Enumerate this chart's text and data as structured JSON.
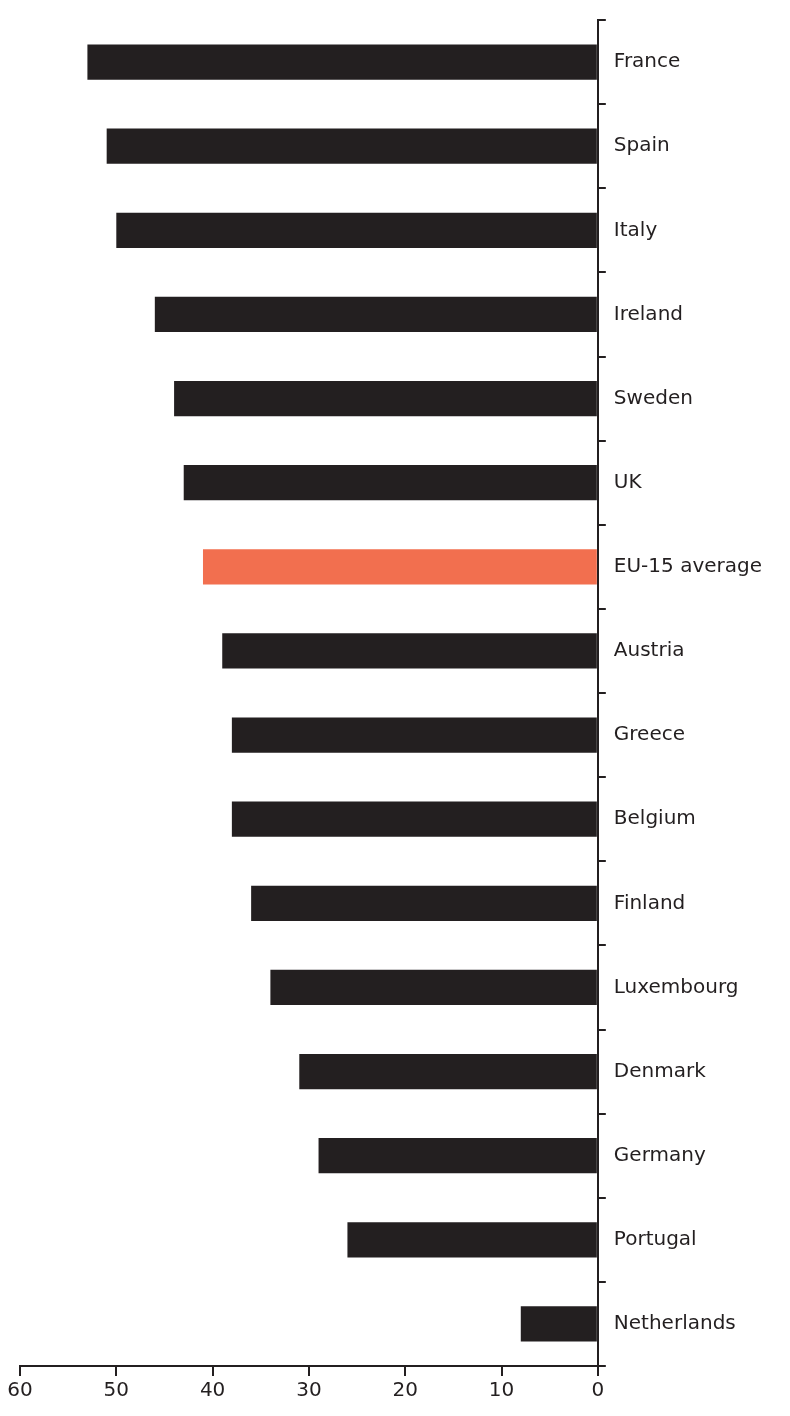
{
  "chart_data": {
    "type": "bar",
    "orientation": "horizontal",
    "categories": [
      "France",
      "Spain",
      "Italy",
      "Ireland",
      "Sweden",
      "UK",
      "EU-15 average",
      "Austria",
      "Greece",
      "Belgium",
      "Finland",
      "Luxembourg",
      "Denmark",
      "Germany",
      "Portugal",
      "Netherlands"
    ],
    "values": [
      53,
      51,
      50,
      46,
      44,
      43,
      41,
      39,
      38,
      38,
      36,
      34,
      31,
      29,
      26,
      8
    ],
    "colors": [
      "#231f20",
      "#231f20",
      "#231f20",
      "#231f20",
      "#231f20",
      "#231f20",
      "#f26f4f",
      "#231f20",
      "#231f20",
      "#231f20",
      "#231f20",
      "#231f20",
      "#231f20",
      "#231f20",
      "#231f20",
      "#231f20"
    ],
    "xlim": [
      60,
      0
    ],
    "xticks": [
      0,
      10,
      20,
      30,
      40,
      50,
      60
    ],
    "grid": false,
    "legend": false
  }
}
